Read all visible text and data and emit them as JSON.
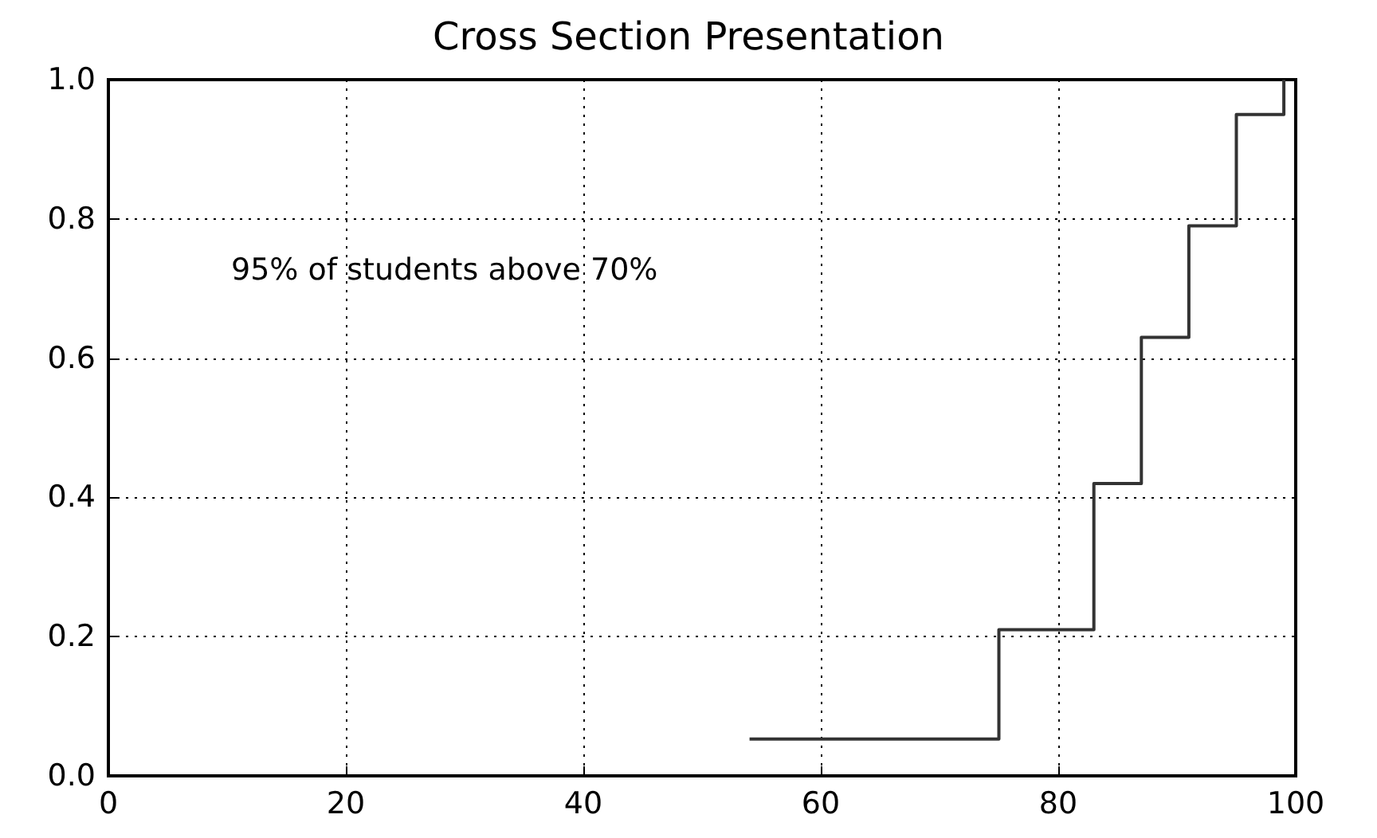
{
  "chart_data": {
    "type": "step",
    "title": "Cross Section Presentation",
    "x": [
      54,
      75,
      83,
      87,
      91,
      95,
      99
    ],
    "series": [
      {
        "color": "#333333",
        "values": [
          0.053,
          0.21,
          0.42,
          0.63,
          0.79,
          0.95,
          1.0
        ]
      }
    ],
    "xlim": [
      0,
      100
    ],
    "xticks": [
      0,
      20,
      40,
      60,
      80,
      100
    ],
    "ylim": [
      0,
      1
    ],
    "yticks": [
      {
        "value": 0,
        "label": "0.0"
      },
      {
        "value": 0.2,
        "label": "0.2"
      },
      {
        "value": 0.4,
        "label": "0.4"
      },
      {
        "value": 0.6,
        "label": "0.6"
      },
      {
        "value": 0.8,
        "label": "0.8"
      },
      {
        "value": 1,
        "label": "1.0"
      }
    ],
    "grid": true,
    "marker": "none",
    "line_style": "solid",
    "annotations": [
      "95% of students above 70%"
    ]
  }
}
